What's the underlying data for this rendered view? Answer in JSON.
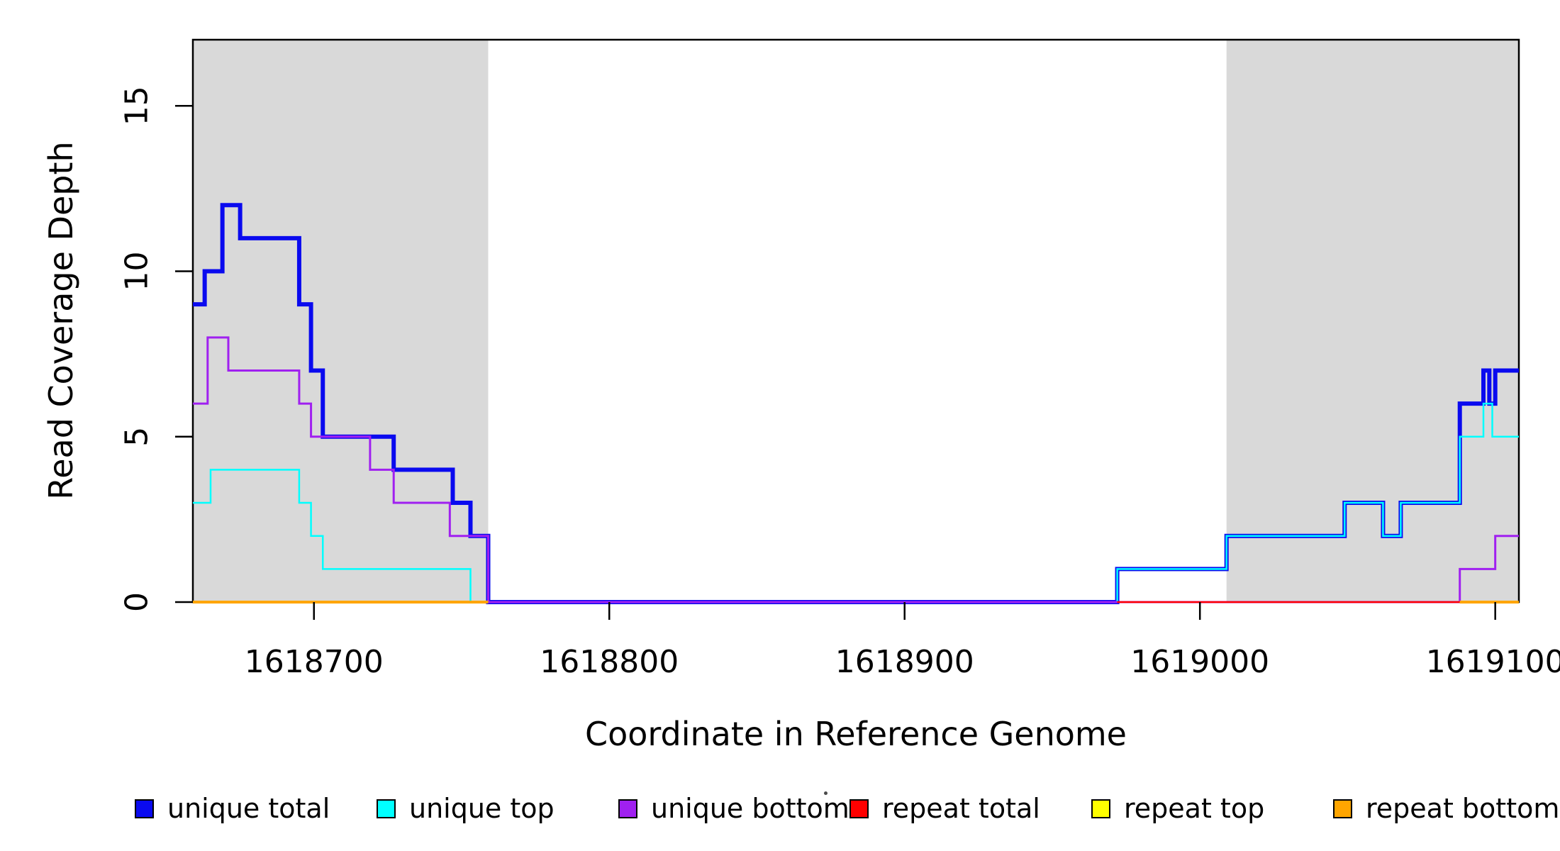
{
  "figure": {
    "background": "#FFFFFF",
    "highlight_color": "#D9D9D9",
    "axis_color": "#000000"
  },
  "chart_data": {
    "type": "line",
    "subtype": "step-coverage",
    "title": "",
    "xlabel": "Coordinate in Reference Genome",
    "ylabel": "Read Coverage Depth",
    "xlim": [
      1618659,
      1619108
    ],
    "ylim": [
      0,
      17
    ],
    "xticks": [
      1618700,
      1618800,
      1618900,
      1619000,
      1619100
    ],
    "yticks": [
      0,
      5,
      10,
      15
    ],
    "grid": false,
    "legend_position": "bottom",
    "highlight_regions": [
      {
        "name": "left-read-region",
        "x1": 1618659,
        "x2": 1618759
      },
      {
        "name": "right-read-region",
        "x1": 1619009,
        "x2": 1619108
      }
    ],
    "series": [
      {
        "name": "unique total",
        "color": "#0A0AEF",
        "line_width": 6,
        "segments": [
          {
            "steps": [
              [
                1618659,
                9
              ],
              [
                1618663,
                10
              ],
              [
                1618669,
                12
              ],
              [
                1618675,
                11
              ],
              [
                1618695,
                9
              ],
              [
                1618699,
                7
              ],
              [
                1618703,
                5
              ],
              [
                1618727,
                4
              ],
              [
                1618747,
                3
              ],
              [
                1618753,
                2
              ],
              [
                1618759,
                0
              ],
              [
                1618972,
                1
              ],
              [
                1619009,
                2
              ],
              [
                1619049,
                3
              ],
              [
                1619062,
                2
              ],
              [
                1619068,
                3
              ],
              [
                1619088,
                6
              ],
              [
                1619096,
                7
              ],
              [
                1619098,
                6
              ],
              [
                1619100,
                7
              ]
            ],
            "end": 1619108
          }
        ]
      },
      {
        "name": "unique top",
        "color": "#00FFFF",
        "line_width": 2.5,
        "segments": [
          {
            "steps": [
              [
                1618659,
                3
              ],
              [
                1618665,
                4
              ],
              [
                1618695,
                3
              ],
              [
                1618699,
                2
              ],
              [
                1618703,
                1
              ],
              [
                1618753,
                0
              ],
              [
                1618972,
                1
              ],
              [
                1619009,
                2
              ],
              [
                1619049,
                3
              ],
              [
                1619062,
                2
              ],
              [
                1619068,
                3
              ],
              [
                1619088,
                5
              ],
              [
                1619096,
                6
              ],
              [
                1619099,
                5
              ]
            ],
            "end": 1619108
          }
        ]
      },
      {
        "name": "unique bottom",
        "color": "#A020F0",
        "line_width": 3,
        "segments": [
          {
            "steps": [
              [
                1618659,
                6
              ],
              [
                1618664,
                8
              ],
              [
                1618671,
                7
              ],
              [
                1618695,
                6
              ],
              [
                1618699,
                5
              ],
              [
                1618719,
                4
              ],
              [
                1618727,
                3
              ],
              [
                1618746,
                2
              ],
              [
                1618759,
                0
              ],
              [
                1619088,
                1
              ],
              [
                1619100,
                2
              ]
            ],
            "end": 1619108
          }
        ]
      },
      {
        "name": "repeat total",
        "color": "#FF0000",
        "line_width": 2.5,
        "segments": [
          {
            "steps": [
              [
                1618972,
                0
              ]
            ],
            "end": 1619108
          }
        ]
      },
      {
        "name": "repeat top",
        "color": "#FFFF00",
        "line_width": 2.5,
        "segments": [
          {
            "steps": [
              [
                1618659,
                0
              ]
            ],
            "end": 1618759
          },
          {
            "steps": [
              [
                1619088,
                0
              ]
            ],
            "end": 1619108
          }
        ]
      },
      {
        "name": "repeat bottom",
        "color": "#FFA500",
        "line_width": 4,
        "segments": [
          {
            "steps": [
              [
                1618659,
                0
              ]
            ],
            "end": 1618759
          },
          {
            "steps": [
              [
                1619088,
                0
              ]
            ],
            "end": 1619108
          }
        ]
      }
    ],
    "legend": [
      {
        "label": "unique total",
        "color": "#0A0AEF"
      },
      {
        "label": "unique top",
        "color": "#00FFFF"
      },
      {
        "label": "unique bottom",
        "color": "#A020F0"
      },
      {
        "label": "repeat total",
        "color": "#FF0000"
      },
      {
        "label": "repeat top",
        "color": "#FFFF00"
      },
      {
        "label": "repeat bottom",
        "color": "#FFA500"
      }
    ]
  }
}
